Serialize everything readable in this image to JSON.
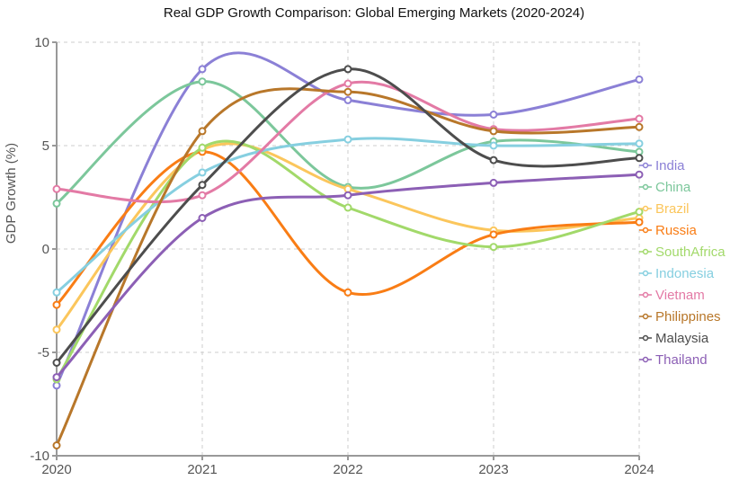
{
  "chart_data": {
    "type": "line",
    "title": "Real GDP Growth Comparison: Global Emerging Markets (2020-2024)",
    "xlabel": "",
    "ylabel": "GDP Growth (%)",
    "x": [
      2020,
      2021,
      2022,
      2023,
      2024
    ],
    "x_tick_labels": [
      "2020",
      "2021",
      "2022",
      "2023",
      "2024"
    ],
    "ylim": [
      -10,
      10
    ],
    "y_ticks": [
      -10,
      -5,
      0,
      5,
      10
    ],
    "y_tick_labels": [
      "-10",
      "-5",
      "0",
      "5",
      "10"
    ],
    "grid": true,
    "legend_placement": "right",
    "series": [
      {
        "name": "India",
        "color": "#8b80d6",
        "values": [
          -6.6,
          8.7,
          7.2,
          6.5,
          8.2
        ]
      },
      {
        "name": "China",
        "color": "#7cc79b",
        "values": [
          2.2,
          8.1,
          3.0,
          5.2,
          4.7
        ]
      },
      {
        "name": "Brazil",
        "color": "#fbc65c",
        "values": [
          -3.9,
          4.8,
          2.9,
          0.9,
          1.5
        ]
      },
      {
        "name": "Russia",
        "color": "#f97d15",
        "values": [
          -2.7,
          4.7,
          -2.1,
          0.7,
          1.3
        ]
      },
      {
        "name": "SouthAfrica",
        "color": "#a2d96a",
        "values": [
          -6.3,
          4.9,
          2.0,
          0.1,
          1.8
        ]
      },
      {
        "name": "Indonesia",
        "color": "#86cfe0",
        "values": [
          -2.1,
          3.7,
          5.3,
          5.0,
          5.1
        ]
      },
      {
        "name": "Vietnam",
        "color": "#e37aa5",
        "values": [
          2.9,
          2.6,
          8.0,
          5.8,
          6.3
        ]
      },
      {
        "name": "Philippines",
        "color": "#b8772a",
        "values": [
          -9.5,
          5.7,
          7.6,
          5.7,
          5.9
        ]
      },
      {
        "name": "Malaysia",
        "color": "#4d4d4d",
        "values": [
          -5.5,
          3.1,
          8.7,
          4.3,
          4.4
        ]
      },
      {
        "name": "Thailand",
        "color": "#8c5fb5",
        "values": [
          -6.2,
          1.5,
          2.6,
          3.2,
          3.6
        ]
      }
    ]
  }
}
